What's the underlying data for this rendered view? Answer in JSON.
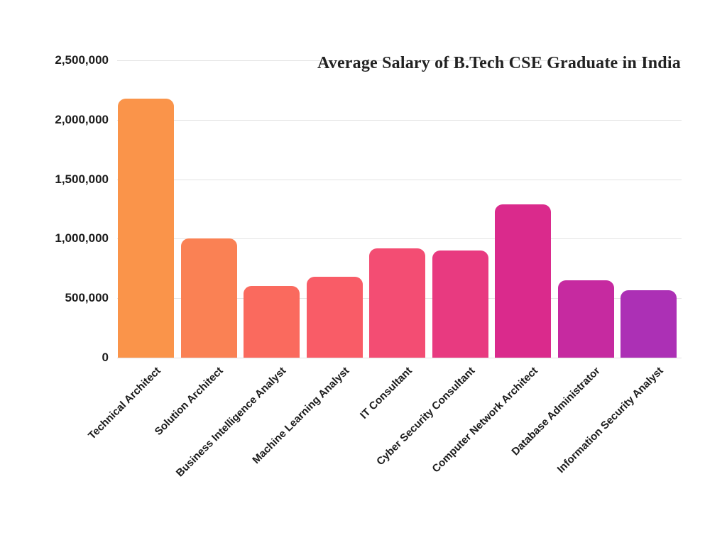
{
  "page": {
    "background": "#ffffff",
    "text_color": "#1c1c1c",
    "gridline_color": "#e3e3e3"
  },
  "chart_data": {
    "type": "bar",
    "title": "Average Salary of B.Tech CSE Graduate in India",
    "categories": [
      "Technical Architect",
      "Solution Architect",
      "Business Intelligence Analyst",
      "Machine Learning Analyst",
      "IT Consultant",
      "Cyber Security Consultant",
      "Computer Network Architect",
      "Database Administrator",
      "Information Security Analyst"
    ],
    "values": [
      2180000,
      1000000,
      600000,
      680000,
      920000,
      900000,
      1290000,
      650000,
      570000
    ],
    "bar_colors": [
      "#FA944A",
      "#FA8154",
      "#FA6A5E",
      "#F95C67",
      "#F34D73",
      "#E83A80",
      "#DA2A8C",
      "#C62AA0",
      "#AC30B5"
    ],
    "xlabel": "",
    "ylabel": "",
    "ylim": [
      0,
      2500000
    ],
    "y_ticks": [
      0,
      500000,
      1000000,
      1500000,
      2000000,
      2500000
    ],
    "y_tick_labels": [
      "0",
      "500,000",
      "1,000,000",
      "1,500,000",
      "2,000,000",
      "2,500,000"
    ],
    "grid": true,
    "legend": false,
    "x_label_rotation_deg": -45
  }
}
